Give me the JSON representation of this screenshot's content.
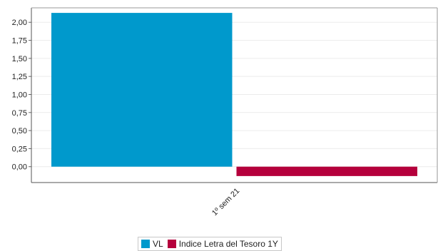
{
  "chart_data": {
    "type": "bar",
    "categories": [
      "1º sem 21"
    ],
    "series": [
      {
        "name": "VL",
        "values": [
          2.13
        ],
        "color": "#0099cc"
      },
      {
        "name": "Indice Letra del Tesoro 1Y",
        "values": [
          -0.13
        ],
        "color": "#b5003c"
      }
    ],
    "y_ticks": [
      "2,00",
      "1,75",
      "1,50",
      "1,25",
      "1,00",
      "0,75",
      "0,50",
      "0,25",
      "0,00"
    ],
    "ylim": [
      -0.22,
      2.2
    ],
    "grid": true,
    "legend_position": "bottom-center",
    "title": "",
    "xlabel": "",
    "ylabel": ""
  }
}
